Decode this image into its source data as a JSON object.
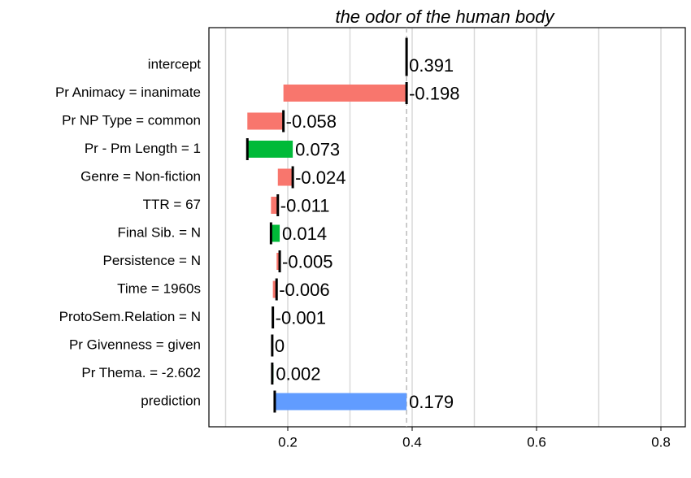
{
  "chart_data": {
    "type": "waterfall",
    "title": "the odor of the human body",
    "categories": [
      "intercept",
      "Pr Animacy = inanimate",
      "Pr NP Type = common",
      "Pr - Pm Length = 1",
      "Genre = Non-fiction",
      "TTR = 67",
      "Final Sib. = N",
      "Persistence = N",
      "Time = 1960s",
      "ProtoSem.Relation = N",
      "Pr Givenness = given",
      "Pr Thema. = -2.602",
      "prediction"
    ],
    "values": [
      0.391,
      -0.198,
      -0.058,
      0.073,
      -0.024,
      -0.011,
      0.014,
      -0.005,
      -0.006,
      -0.001,
      0,
      0.002,
      0.179
    ],
    "colors": {
      "positive": "#00BA38",
      "negative": "#F8766D",
      "prediction": "#619CFF"
    },
    "xlim": [
      0.0732,
      0.8392
    ],
    "xticks": [
      0.2,
      0.4,
      0.6,
      0.8
    ],
    "xminor": [
      0.1,
      0.3,
      0.5,
      0.7
    ],
    "grid": true
  }
}
